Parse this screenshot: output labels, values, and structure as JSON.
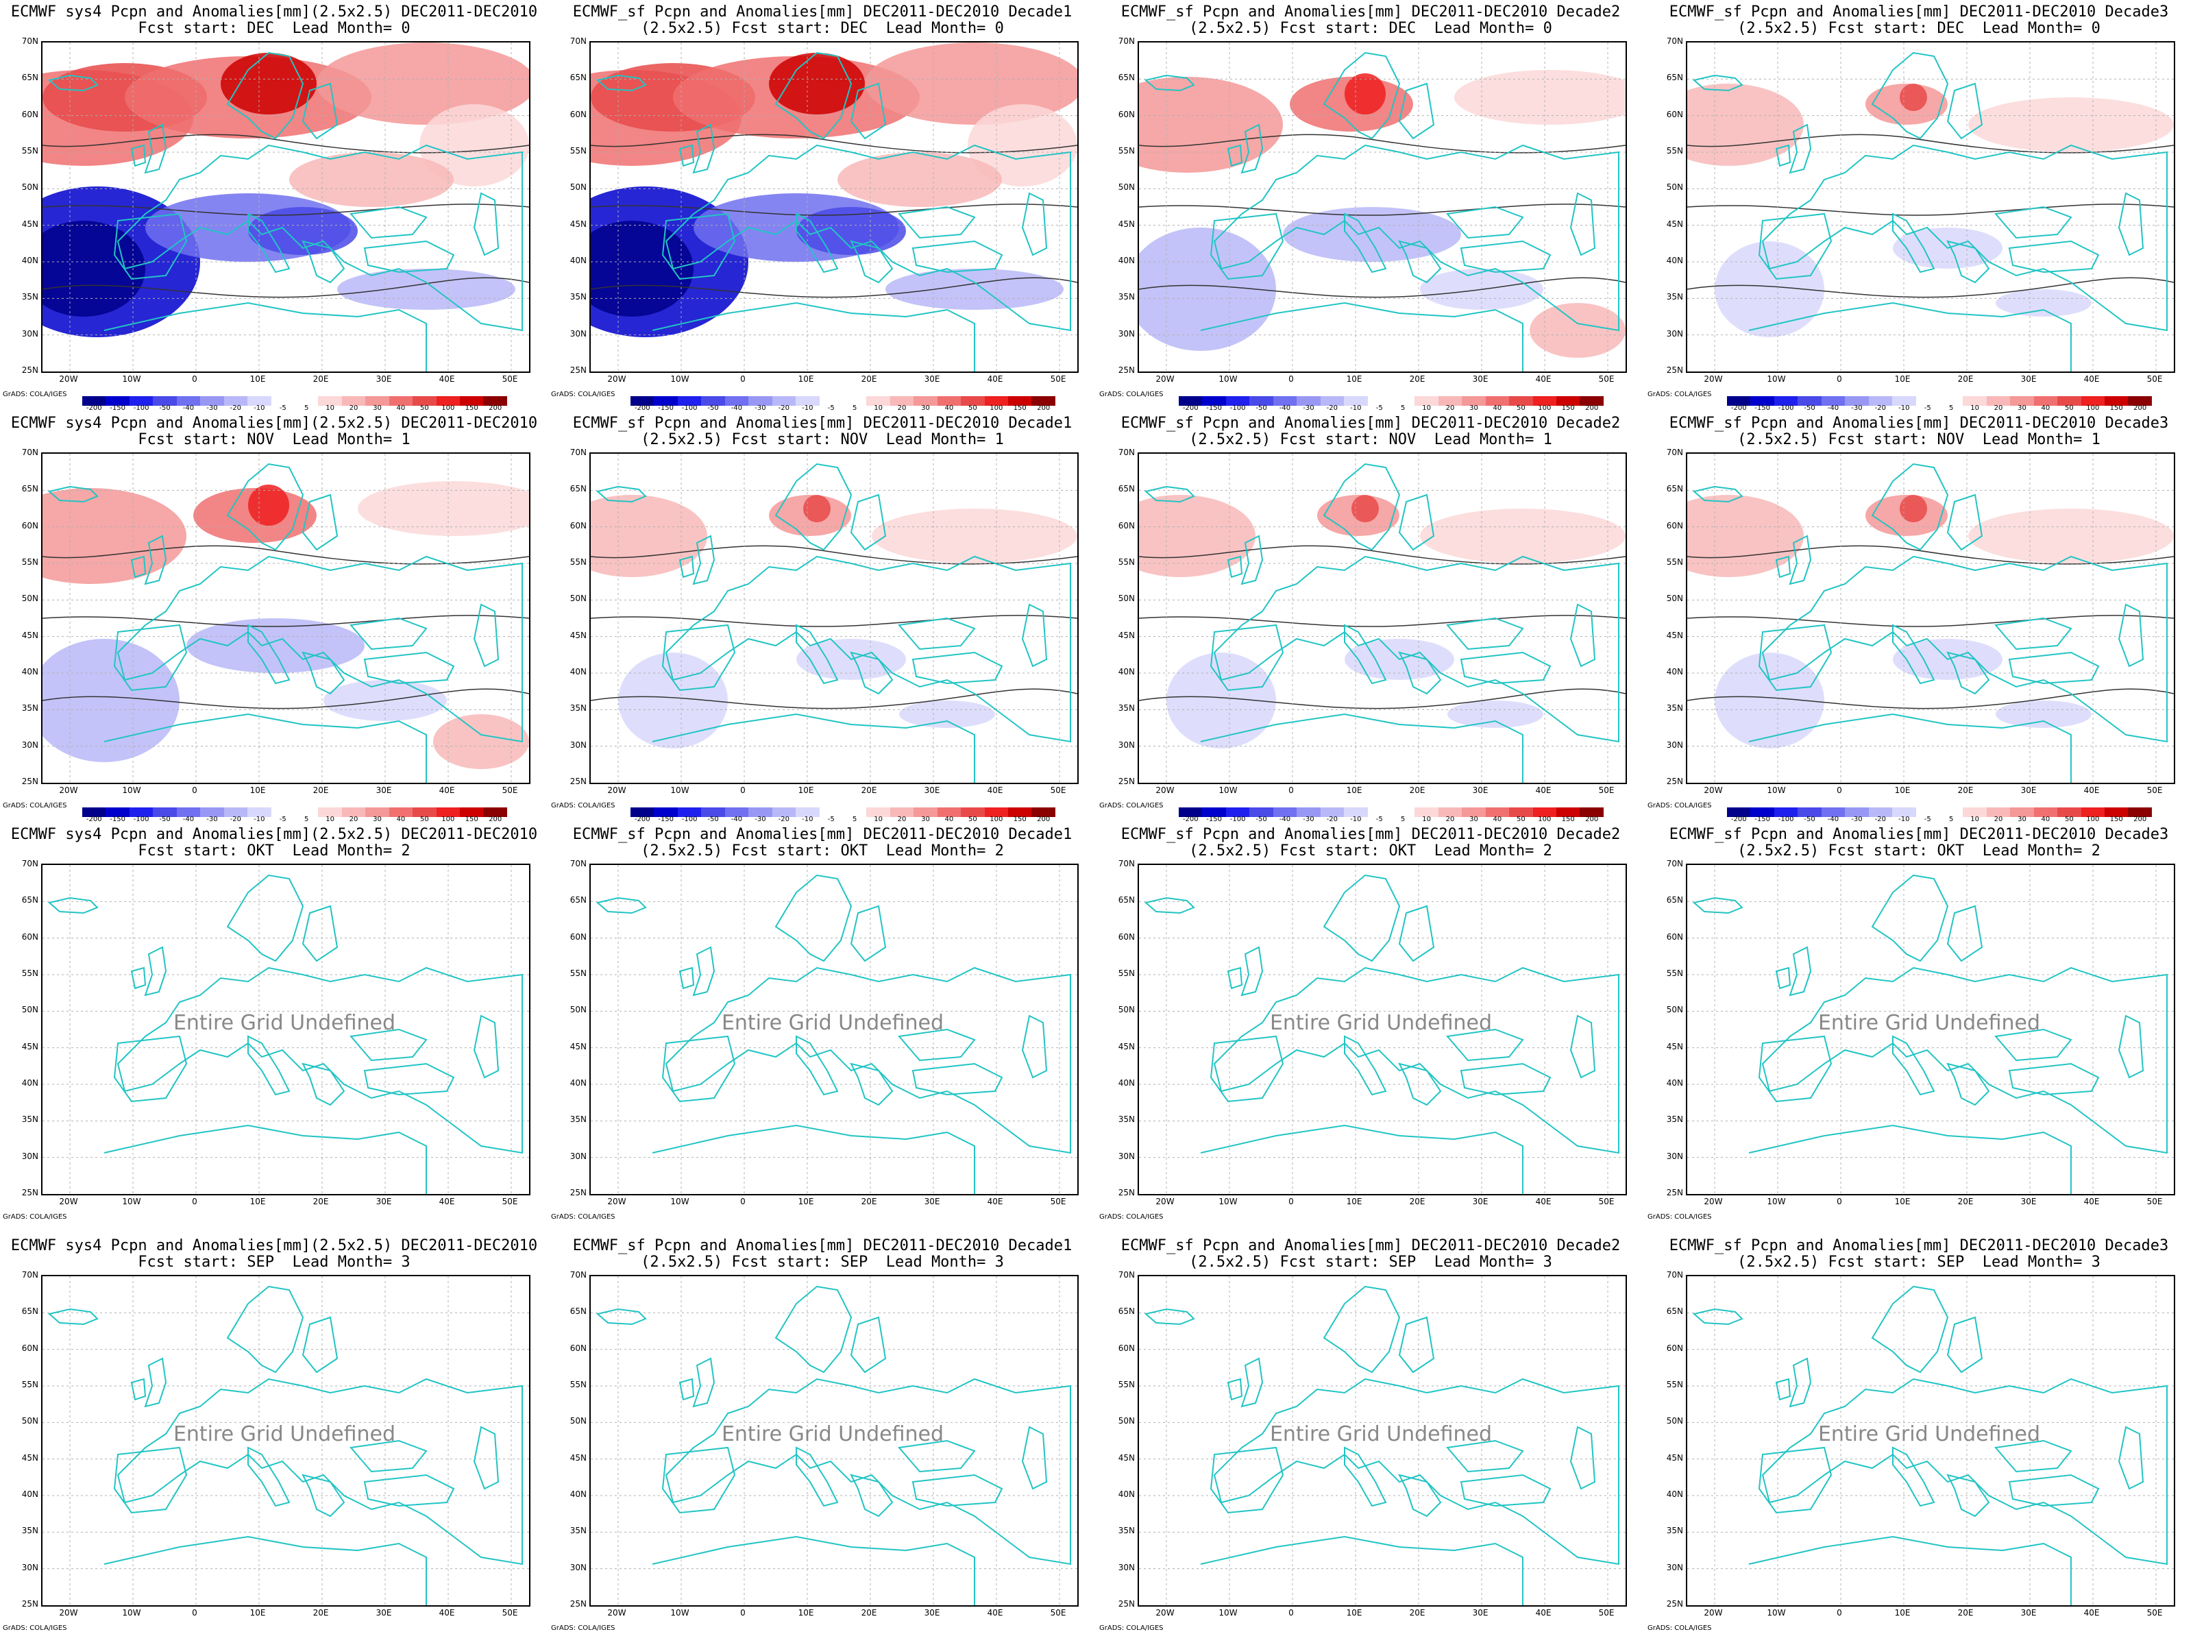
{
  "colors": {
    "coast": "#22c4c4",
    "grid": "#b0b0b0",
    "scale": [
      "#00008b",
      "#0000cd",
      "#2020ee",
      "#4a4ae8",
      "#7070f0",
      "#9898f4",
      "#b8b8f8",
      "#d8d8fc",
      "#ffffff",
      "#ffffff",
      "#fcd8d8",
      "#f8b8b8",
      "#f49898",
      "#f07070",
      "#e84a4a",
      "#ee2020",
      "#cd0000",
      "#8b0000"
    ]
  },
  "colorbar_labels": [
    "-200",
    "-150",
    "-100",
    "-50",
    "-40",
    "-30",
    "-20",
    "-10",
    "-5",
    "5",
    "10",
    "20",
    "30",
    "40",
    "50",
    "100",
    "150",
    "200"
  ],
  "lat_labels": [
    "70N",
    "65N",
    "60N",
    "55N",
    "50N",
    "45N",
    "40N",
    "35N",
    "30N",
    "25N"
  ],
  "lon_labels": [
    "20W",
    "10W",
    "0",
    "10E",
    "20E",
    "30E",
    "40E",
    "50E"
  ],
  "credit": "GrADS: COLA/IGES",
  "undefined_text": "Entire Grid Undefined",
  "panels": [
    {
      "title1": "ECMWF sys4 Pcpn and Anomalies[mm](2.5x2.5) DEC2011-DEC2010",
      "title2": "Fcst start: DEC  Lead Month= 0",
      "defined": true,
      "colorbar": true,
      "pattern": "strong"
    },
    {
      "title1": "ECMWF_sf Pcpn and Anomalies[mm] DEC2011-DEC2010 Decade1",
      "title2": "(2.5x2.5) Fcst start: DEC  Lead Month= 0",
      "defined": true,
      "colorbar": true,
      "pattern": "strong"
    },
    {
      "title1": "ECMWF_sf Pcpn and Anomalies[mm] DEC2011-DEC2010 Decade2",
      "title2": "(2.5x2.5) Fcst start: DEC  Lead Month= 0",
      "defined": true,
      "colorbar": true,
      "pattern": "medium"
    },
    {
      "title1": "ECMWF_sf Pcpn and Anomalies[mm] DEC2011-DEC2010 Decade3",
      "title2": "(2.5x2.5) Fcst start: DEC  Lead Month= 0",
      "defined": true,
      "colorbar": true,
      "pattern": "weak"
    },
    {
      "title1": "ECMWF sys4 Pcpn and Anomalies[mm](2.5x2.5) DEC2011-DEC2010",
      "title2": "Fcst start: NOV  Lead Month= 1",
      "defined": true,
      "colorbar": true,
      "pattern": "medium"
    },
    {
      "title1": "ECMWF_sf Pcpn and Anomalies[mm] DEC2011-DEC2010 Decade1",
      "title2": "(2.5x2.5) Fcst start: NOV  Lead Month= 1",
      "defined": true,
      "colorbar": true,
      "pattern": "weak"
    },
    {
      "title1": "ECMWF_sf Pcpn and Anomalies[mm] DEC2011-DEC2010 Decade2",
      "title2": "(2.5x2.5) Fcst start: NOV  Lead Month= 1",
      "defined": true,
      "colorbar": true,
      "pattern": "weak"
    },
    {
      "title1": "ECMWF_sf Pcpn and Anomalies[mm] DEC2011-DEC2010 Decade3",
      "title2": "(2.5x2.5) Fcst start: NOV  Lead Month= 1",
      "defined": true,
      "colorbar": true,
      "pattern": "weak"
    },
    {
      "title1": "ECMWF sys4 Pcpn and Anomalies[mm](2.5x2.5) DEC2011-DEC2010",
      "title2": "Fcst start: OKT  Lead Month= 2",
      "defined": false,
      "colorbar": false
    },
    {
      "title1": "ECMWF_sf Pcpn and Anomalies[mm] DEC2011-DEC2010 Decade1",
      "title2": "(2.5x2.5) Fcst start: OKT  Lead Month= 2",
      "defined": false,
      "colorbar": false
    },
    {
      "title1": "ECMWF_sf Pcpn and Anomalies[mm] DEC2011-DEC2010 Decade2",
      "title2": "(2.5x2.5) Fcst start: OKT  Lead Month= 2",
      "defined": false,
      "colorbar": false
    },
    {
      "title1": "ECMWF_sf Pcpn and Anomalies[mm] DEC2011-DEC2010 Decade3",
      "title2": "(2.5x2.5) Fcst start: OKT  Lead Month= 2",
      "defined": false,
      "colorbar": false
    },
    {
      "title1": "ECMWF sys4 Pcpn and Anomalies[mm](2.5x2.5) DEC2011-DEC2010",
      "title2": "Fcst start: SEP  Lead Month= 3",
      "defined": false,
      "colorbar": false
    },
    {
      "title1": "ECMWF_sf Pcpn and Anomalies[mm] DEC2011-DEC2010 Decade1",
      "title2": "(2.5x2.5) Fcst start: SEP  Lead Month= 3",
      "defined": false,
      "colorbar": false
    },
    {
      "title1": "ECMWF_sf Pcpn and Anomalies[mm] DEC2011-DEC2010 Decade2",
      "title2": "(2.5x2.5) Fcst start: SEP  Lead Month= 3",
      "defined": false,
      "colorbar": false
    },
    {
      "title1": "ECMWF_sf Pcpn and Anomalies[mm] DEC2011-DEC2010 Decade3",
      "title2": "(2.5x2.5) Fcst start: SEP  Lead Month= 3",
      "defined": false,
      "colorbar": false
    }
  ]
}
